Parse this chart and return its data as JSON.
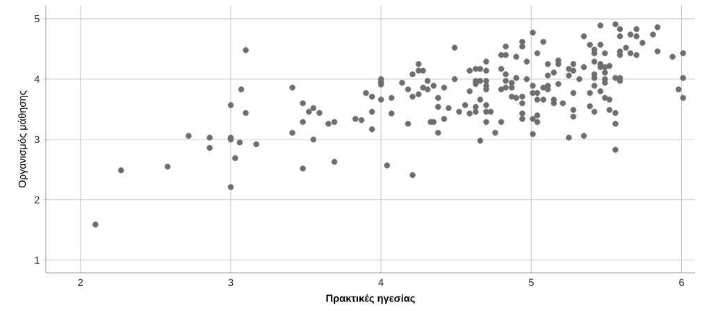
{
  "chart_data": {
    "type": "scatter",
    "xlabel": "Πρακτικές ηγεσίας",
    "ylabel": "Οργανισμός μάθησης",
    "xlim": [
      1.77,
      6.09
    ],
    "ylim": [
      0.79,
      5.22
    ],
    "xticks": [
      2,
      3,
      4,
      5,
      6
    ],
    "yticks": [
      1,
      2,
      3,
      4,
      5
    ],
    "grid": true,
    "marker": "circle",
    "series": [
      {
        "color": "#6e6e6e",
        "x": [
          2.1,
          2.27,
          2.58,
          2.72,
          2.86,
          2.86,
          3.0,
          3.0,
          3.0,
          3.0,
          3.03,
          3.06,
          3.07,
          3.1,
          3.1,
          3.17,
          3.41,
          3.41,
          3.48,
          3.48,
          3.48,
          3.52,
          3.55,
          3.55,
          3.59,
          3.65,
          3.69,
          3.69,
          3.83,
          3.87,
          3.9,
          3.94,
          3.94,
          3.94,
          4.0,
          4.0,
          4.0,
          4.0,
          4.04,
          4.07,
          4.07,
          4.14,
          4.18,
          4.18,
          4.21,
          4.21,
          4.21,
          4.25,
          4.25,
          4.25,
          4.28,
          4.28,
          4.31,
          4.31,
          4.33,
          4.35,
          4.35,
          4.38,
          4.38,
          4.38,
          4.42,
          4.42,
          4.45,
          4.49,
          4.49,
          4.52,
          4.56,
          4.59,
          4.59,
          4.59,
          4.63,
          4.63,
          4.63,
          4.63,
          4.63,
          4.66,
          4.66,
          4.66,
          4.66,
          4.7,
          4.7,
          4.7,
          4.7,
          4.7,
          4.7,
          4.7,
          4.7,
          4.73,
          4.76,
          4.8,
          4.8,
          4.8,
          4.8,
          4.83,
          4.83,
          4.83,
          4.83,
          4.83,
          4.87,
          4.87,
          4.87,
          4.9,
          4.9,
          4.9,
          4.94,
          4.94,
          4.94,
          4.94,
          4.94,
          4.94,
          4.97,
          4.97,
          5.01,
          5.01,
          5.01,
          5.01,
          5.01,
          5.04,
          5.04,
          5.04,
          5.04,
          5.04,
          5.08,
          5.08,
          5.08,
          5.11,
          5.11,
          5.11,
          5.11,
          5.15,
          5.15,
          5.15,
          5.18,
          5.18,
          5.18,
          5.21,
          5.25,
          5.25,
          5.25,
          5.28,
          5.28,
          5.28,
          5.28,
          5.28,
          5.32,
          5.35,
          5.35,
          5.35,
          5.39,
          5.39,
          5.39,
          5.42,
          5.42,
          5.42,
          5.42,
          5.42,
          5.42,
          5.42,
          5.46,
          5.46,
          5.46,
          5.46,
          5.46,
          5.49,
          5.49,
          5.49,
          5.49,
          5.49,
          5.49,
          5.52,
          5.52,
          5.52,
          5.56,
          5.56,
          5.56,
          5.56,
          5.56,
          5.59,
          5.59,
          5.59,
          5.59,
          5.59,
          5.59,
          5.63,
          5.66,
          5.66,
          5.7,
          5.7,
          5.7,
          5.74,
          5.81,
          5.84,
          5.84,
          5.94,
          5.98,
          6.01,
          6.01,
          6.01
        ],
        "values": [
          1.59,
          2.49,
          2.55,
          3.06,
          3.03,
          2.86,
          3.57,
          3.03,
          3.0,
          2.21,
          2.69,
          2.95,
          3.83,
          3.44,
          4.48,
          2.92,
          3.86,
          3.11,
          3.6,
          3.29,
          2.52,
          3.46,
          3.52,
          3.0,
          3.44,
          3.26,
          3.29,
          2.63,
          3.34,
          3.32,
          3.77,
          3.71,
          3.46,
          3.17,
          4.0,
          3.95,
          3.91,
          3.66,
          2.57,
          3.69,
          3.43,
          3.94,
          3.83,
          3.26,
          2.41,
          4.08,
          3.71,
          4.25,
          4.14,
          3.75,
          4.14,
          3.86,
          3.97,
          3.83,
          3.29,
          3.89,
          3.29,
          3.69,
          3.54,
          3.11,
          3.86,
          3.34,
          3.52,
          4.52,
          4.0,
          3.46,
          3.57,
          4.14,
          3.8,
          3.43,
          4.17,
          3.97,
          3.92,
          3.54,
          3.46,
          4.17,
          3.97,
          3.66,
          2.98,
          4.29,
          4.14,
          3.97,
          3.89,
          3.83,
          3.57,
          3.46,
          3.29,
          3.46,
          3.11,
          4.4,
          4.17,
          3.83,
          3.29,
          4.54,
          4.4,
          4.08,
          3.97,
          3.86,
          3.94,
          3.86,
          3.71,
          4.37,
          4.02,
          3.69,
          4.62,
          4.54,
          3.71,
          3.6,
          3.43,
          3.34,
          4.29,
          4.0,
          3.89,
          3.77,
          3.34,
          3.09,
          4.77,
          4.43,
          3.77,
          3.66,
          3.4,
          3.29,
          4.62,
          3.86,
          3.66,
          4.25,
          4.06,
          3.89,
          3.83,
          4.11,
          3.66,
          3.6,
          4.31,
          4.25,
          3.92,
          3.6,
          4.17,
          4.06,
          3.03,
          4.25,
          4.14,
          3.77,
          3.49,
          3.38,
          4.0,
          4.71,
          4.2,
          3.06,
          4.57,
          3.77,
          3.55,
          4.49,
          4.43,
          4.29,
          4.08,
          4.02,
          3.89,
          3.46,
          4.89,
          4.57,
          4.25,
          4.2,
          3.8,
          4.43,
          4.2,
          4.11,
          4.0,
          3.94,
          3.69,
          4.22,
          3.66,
          3.49,
          4.91,
          4.02,
          3.44,
          3.26,
          2.83,
          4.83,
          4.71,
          4.46,
          4.4,
          4.02,
          3.97,
          4.52,
          4.74,
          4.43,
          4.83,
          4.71,
          4.4,
          4.6,
          4.74,
          4.86,
          4.46,
          4.37,
          3.83,
          4.43,
          4.02,
          3.69
        ]
      }
    ]
  }
}
